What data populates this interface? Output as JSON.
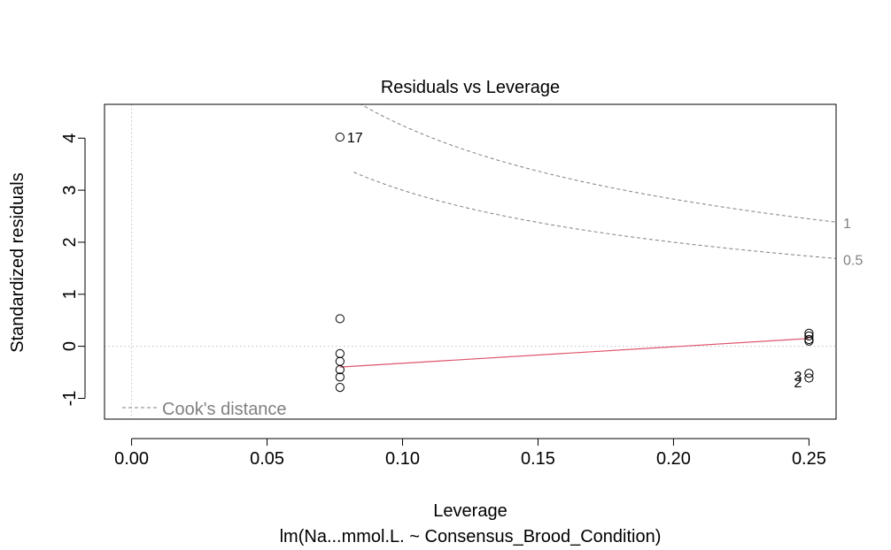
{
  "chart_data": {
    "type": "scatter",
    "title": "Residuals vs Leverage",
    "xlabel": "Leverage",
    "subtitle": "lm(Na...mmol.L. ~ Consensus_Brood_Condition)",
    "ylabel": "Standardized residuals",
    "xlim": [
      -0.01,
      0.26
    ],
    "ylim": [
      -1.4,
      4.65
    ],
    "x_ticks": [
      0.0,
      0.05,
      0.1,
      0.15,
      0.2,
      0.25
    ],
    "x_tick_labels": [
      "0.00",
      "0.05",
      "0.10",
      "0.15",
      "0.20",
      "0.25"
    ],
    "y_ticks": [
      -1,
      0,
      1,
      2,
      3,
      4
    ],
    "y_tick_labels": [
      "-1",
      "0",
      "1",
      "2",
      "3",
      "4"
    ],
    "points": [
      {
        "x": 0.0769,
        "y": 4.02
      },
      {
        "x": 0.0769,
        "y": 0.53
      },
      {
        "x": 0.0769,
        "y": -0.14
      },
      {
        "x": 0.0769,
        "y": -0.29
      },
      {
        "x": 0.0769,
        "y": -0.45
      },
      {
        "x": 0.0769,
        "y": -0.59
      },
      {
        "x": 0.0769,
        "y": -0.79
      },
      {
        "x": 0.25,
        "y": 0.25
      },
      {
        "x": 0.25,
        "y": 0.2
      },
      {
        "x": 0.25,
        "y": 0.13
      },
      {
        "x": 0.25,
        "y": 0.1
      },
      {
        "x": 0.25,
        "y": -0.52
      },
      {
        "x": 0.25,
        "y": -0.61
      }
    ],
    "point_labels": [
      {
        "x": 0.0769,
        "y": 4.02,
        "text": "17",
        "side": "right"
      },
      {
        "x": 0.25,
        "y": -0.57,
        "text": "3",
        "side": "left"
      },
      {
        "x": 0.25,
        "y": -0.69,
        "text": "2",
        "side": "left"
      }
    ],
    "smooth_line": {
      "x": [
        0.0769,
        0.25
      ],
      "y": [
        -0.4,
        0.15
      ],
      "color": "#DF536B"
    },
    "cooks_contours": [
      {
        "level": 1,
        "label": "1"
      },
      {
        "level": 0.5,
        "label": "0.5"
      }
    ],
    "cooks_p": 2,
    "cooks_x_start": 0.082,
    "reference_lines": {
      "h": 0,
      "v": 0
    },
    "legend": {
      "text": "Cook's distance",
      "position": "bottom-left"
    },
    "grid": false
  },
  "colors": {
    "points": "#000000",
    "smooth": "#DF536B",
    "cooks": "#808080",
    "reference": "#BEBEBE",
    "axis": "#000000"
  }
}
